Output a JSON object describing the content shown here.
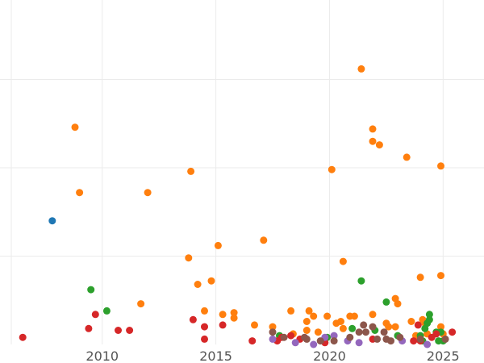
{
  "chart_data": {
    "type": "scatter",
    "title": "",
    "xlabel": "",
    "ylabel": "",
    "xlim": [
      2005.5,
      2026.8
    ],
    "ylim": [
      0,
      1.95
    ],
    "x_ticks": [
      2010,
      2015,
      2020,
      2025
    ],
    "x_tick_labels": [
      "2010",
      "2015",
      "2020",
      "2025"
    ],
    "y_gridlines": [
      0.5,
      1.0,
      1.5
    ],
    "grid": true,
    "legend": "none",
    "series": [
      {
        "color": "#1f77b4",
        "points": [
          [
            2007.8,
            0.7
          ]
        ]
      },
      {
        "color": "#ff7f0e",
        "points": [
          [
            2008.8,
            1.23
          ],
          [
            2009.0,
            0.86
          ],
          [
            2011.7,
            0.23
          ],
          [
            2012.0,
            0.86
          ],
          [
            2013.8,
            0.49
          ],
          [
            2013.9,
            0.98
          ],
          [
            2014.2,
            0.34
          ],
          [
            2014.5,
            0.19
          ],
          [
            2014.8,
            0.36
          ],
          [
            2015.1,
            0.56
          ],
          [
            2015.3,
            0.17
          ],
          [
            2015.8,
            0.15
          ],
          [
            2015.8,
            0.18
          ],
          [
            2016.7,
            0.11
          ],
          [
            2017.1,
            0.59
          ],
          [
            2017.5,
            0.1
          ],
          [
            2018.3,
            0.19
          ],
          [
            2018.4,
            0.06
          ],
          [
            2019.0,
            0.13
          ],
          [
            2019.0,
            0.08
          ],
          [
            2019.1,
            0.19
          ],
          [
            2019.3,
            0.16
          ],
          [
            2019.5,
            0.07
          ],
          [
            2019.9,
            0.16
          ],
          [
            2020.1,
            0.99
          ],
          [
            2020.3,
            0.12
          ],
          [
            2020.5,
            0.13
          ],
          [
            2020.6,
            0.47
          ],
          [
            2020.6,
            0.09
          ],
          [
            2020.9,
            0.16
          ],
          [
            2021.1,
            0.16
          ],
          [
            2021.4,
            1.56
          ],
          [
            2021.9,
            1.22
          ],
          [
            2021.9,
            1.15
          ],
          [
            2021.9,
            0.17
          ],
          [
            2022.2,
            1.13
          ],
          [
            2022.5,
            0.12
          ],
          [
            2022.6,
            0.1
          ],
          [
            2022.9,
            0.26
          ],
          [
            2023.0,
            0.23
          ],
          [
            2022.9,
            0.1
          ],
          [
            2023.4,
            1.06
          ],
          [
            2023.6,
            0.13
          ],
          [
            2023.8,
            0.05
          ],
          [
            2024.0,
            0.38
          ],
          [
            2024.1,
            0.14
          ],
          [
            2024.2,
            0.12
          ],
          [
            2024.3,
            0.06
          ],
          [
            2024.9,
            1.01
          ],
          [
            2024.9,
            0.39
          ],
          [
            2024.9,
            0.1
          ],
          [
            2025.0,
            0.06
          ]
        ]
      },
      {
        "color": "#2ca02c",
        "points": [
          [
            2009.5,
            0.31
          ],
          [
            2010.2,
            0.19
          ],
          [
            2017.8,
            0.05
          ],
          [
            2019.9,
            0.04
          ],
          [
            2021.0,
            0.09
          ],
          [
            2021.4,
            0.36
          ],
          [
            2022.0,
            0.08
          ],
          [
            2022.5,
            0.24
          ],
          [
            2023.0,
            0.05
          ],
          [
            2024.0,
            0.05
          ],
          [
            2024.1,
            0.02
          ],
          [
            2024.2,
            0.09
          ],
          [
            2024.3,
            0.12
          ],
          [
            2024.4,
            0.14
          ],
          [
            2024.4,
            0.17
          ],
          [
            2024.7,
            0.07
          ],
          [
            2024.8,
            0.02
          ],
          [
            2024.9,
            0.07
          ],
          [
            2025.0,
            0.02
          ]
        ]
      },
      {
        "color": "#d62728",
        "points": [
          [
            2006.5,
            0.04
          ],
          [
            2009.4,
            0.09
          ],
          [
            2009.7,
            0.17
          ],
          [
            2010.7,
            0.08
          ],
          [
            2011.2,
            0.08
          ],
          [
            2014.0,
            0.14
          ],
          [
            2014.5,
            0.1
          ],
          [
            2014.5,
            0.03
          ],
          [
            2015.3,
            0.11
          ],
          [
            2016.6,
            0.02
          ],
          [
            2017.7,
            0.02
          ],
          [
            2017.9,
            0.04
          ],
          [
            2018.3,
            0.05
          ],
          [
            2018.7,
            0.03
          ],
          [
            2019.8,
            0.01
          ],
          [
            2021.9,
            0.03
          ],
          [
            2023.7,
            0.02
          ],
          [
            2024.0,
            0.02
          ],
          [
            2023.9,
            0.11
          ],
          [
            2024.5,
            0.04
          ],
          [
            2024.7,
            0.06
          ],
          [
            2025.4,
            0.07
          ]
        ]
      },
      {
        "color": "#9467bd",
        "points": [
          [
            2017.5,
            0.03
          ],
          [
            2018.5,
            0.01
          ],
          [
            2019.3,
            0.0
          ],
          [
            2019.8,
            0.04
          ],
          [
            2020.2,
            0.05
          ],
          [
            2020.8,
            0.02
          ],
          [
            2021.3,
            0.01
          ],
          [
            2023.2,
            0.02
          ],
          [
            2024.3,
            0.0
          ]
        ]
      },
      {
        "color": "#8c564b",
        "points": [
          [
            2017.5,
            0.07
          ],
          [
            2018.0,
            0.04
          ],
          [
            2018.9,
            0.04
          ],
          [
            2019.0,
            0.03
          ],
          [
            2019.6,
            0.02
          ],
          [
            2020.2,
            0.02
          ],
          [
            2020.9,
            0.04
          ],
          [
            2021.3,
            0.07
          ],
          [
            2021.5,
            0.11
          ],
          [
            2021.6,
            0.07
          ],
          [
            2021.9,
            0.1
          ],
          [
            2022.1,
            0.03
          ],
          [
            2022.4,
            0.07
          ],
          [
            2022.5,
            0.03
          ],
          [
            2022.7,
            0.02
          ],
          [
            2023.1,
            0.04
          ],
          [
            2024.0,
            0.03
          ],
          [
            2025.1,
            0.03
          ]
        ]
      }
    ]
  }
}
